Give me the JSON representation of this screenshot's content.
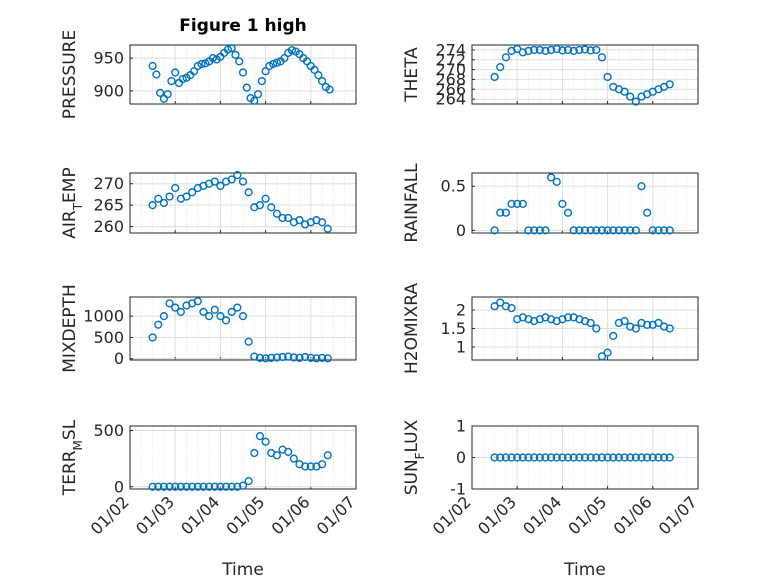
{
  "figure": {
    "title": "Figure 1 high",
    "xlabel": "Time",
    "xticks": [
      "01/02",
      "01/03",
      "01/04",
      "01/05",
      "01/06",
      "01/07"
    ]
  },
  "colors": {
    "marker": "#0072BD",
    "axis": "#262626",
    "grid": "#dedede"
  },
  "chart_data": [
    {
      "type": "scatter",
      "ylabel": "PRESSURE",
      "title": "Figure 1 high",
      "xlim": [
        "01/02",
        "01/07"
      ],
      "ylim": [
        880,
        970
      ],
      "yticks": [
        900,
        950
      ],
      "x": [
        "01/02 12:00",
        "01/02 14:00",
        "01/02 16:00",
        "01/02 18:00",
        "01/02 20:00",
        "01/02 22:00",
        "01/03 00:00",
        "01/03 02:00",
        "01/03 04:00",
        "01/03 06:00",
        "01/03 08:00",
        "01/03 10:00",
        "01/03 12:00",
        "01/03 14:00",
        "01/03 16:00",
        "01/03 18:00",
        "01/03 20:00",
        "01/03 22:00",
        "01/04 00:00",
        "01/04 02:00",
        "01/04 04:00",
        "01/04 06:00",
        "01/04 08:00",
        "01/04 10:00",
        "01/04 12:00",
        "01/04 14:00",
        "01/04 16:00",
        "01/04 18:00",
        "01/04 20:00",
        "01/04 22:00",
        "01/05 00:00",
        "01/05 02:00",
        "01/05 04:00",
        "01/05 06:00",
        "01/05 08:00",
        "01/05 10:00",
        "01/05 12:00",
        "01/05 14:00",
        "01/05 16:00",
        "01/05 18:00",
        "01/05 20:00",
        "01/05 22:00",
        "01/06 00:00",
        "01/06 02:00",
        "01/06 04:00",
        "01/06 06:00",
        "01/06 08:00",
        "01/06 10:00"
      ],
      "y": [
        938,
        925,
        897,
        888,
        895,
        915,
        928,
        912,
        918,
        920,
        924,
        930,
        938,
        941,
        942,
        945,
        950,
        948,
        952,
        958,
        963,
        965,
        955,
        945,
        928,
        905,
        889,
        885,
        895,
        915,
        930,
        938,
        941,
        943,
        945,
        950,
        958,
        962,
        960,
        956,
        950,
        945,
        938,
        932,
        924,
        915,
        906,
        902
      ]
    },
    {
      "type": "scatter",
      "ylabel": "THETA",
      "xlim": [
        "01/02",
        "01/07"
      ],
      "ylim": [
        263,
        275
      ],
      "yticks": [
        264,
        266,
        268,
        270,
        272,
        274
      ],
      "x": [
        "01/02 12:00",
        "01/02 15:00",
        "01/02 18:00",
        "01/02 21:00",
        "01/03 00:00",
        "01/03 03:00",
        "01/03 06:00",
        "01/03 09:00",
        "01/03 12:00",
        "01/03 15:00",
        "01/03 18:00",
        "01/03 21:00",
        "01/04 00:00",
        "01/04 03:00",
        "01/04 06:00",
        "01/04 09:00",
        "01/04 12:00",
        "01/04 15:00",
        "01/04 18:00",
        "01/04 21:00",
        "01/05 00:00",
        "01/05 03:00",
        "01/05 06:00",
        "01/05 09:00",
        "01/05 12:00",
        "01/05 15:00",
        "01/05 18:00",
        "01/05 21:00",
        "01/06 00:00",
        "01/06 03:00",
        "01/06 06:00",
        "01/06 09:00"
      ],
      "y": [
        268.5,
        270.5,
        272.5,
        273.8,
        274.2,
        273.5,
        273.8,
        274.0,
        274.0,
        273.8,
        274.0,
        274.2,
        273.9,
        274.0,
        273.8,
        274.0,
        274.1,
        273.9,
        274.0,
        272.5,
        268.5,
        266.5,
        266.0,
        265.5,
        264.5,
        263.5,
        264.5,
        265.0,
        265.5,
        266.0,
        266.5,
        267.0
      ]
    },
    {
      "type": "scatter",
      "ylabel": "AIR_TEMP",
      "xlim": [
        "01/02",
        "01/07"
      ],
      "ylim": [
        258.5,
        272.5
      ],
      "yticks": [
        260,
        265,
        270
      ],
      "x": [
        "01/02 12:00",
        "01/02 15:00",
        "01/02 18:00",
        "01/02 21:00",
        "01/03 00:00",
        "01/03 03:00",
        "01/03 06:00",
        "01/03 09:00",
        "01/03 12:00",
        "01/03 15:00",
        "01/03 18:00",
        "01/03 21:00",
        "01/04 00:00",
        "01/04 03:00",
        "01/04 06:00",
        "01/04 09:00",
        "01/04 12:00",
        "01/04 15:00",
        "01/04 18:00",
        "01/04 21:00",
        "01/05 00:00",
        "01/05 03:00",
        "01/05 06:00",
        "01/05 09:00",
        "01/05 12:00",
        "01/05 15:00",
        "01/05 18:00",
        "01/05 21:00",
        "01/06 00:00",
        "01/06 03:00",
        "01/06 06:00",
        "01/06 09:00"
      ],
      "y": [
        265,
        266.5,
        265.5,
        267,
        269,
        266.5,
        267,
        268,
        269,
        269.5,
        270,
        270.5,
        269.5,
        270.5,
        271,
        272,
        270.5,
        268,
        264.5,
        265,
        266.5,
        264.5,
        263,
        262,
        262,
        261,
        261.5,
        260.5,
        261,
        261.5,
        261,
        259.5
      ]
    },
    {
      "type": "scatter",
      "ylabel": "RAINFALL",
      "xlim": [
        "01/02",
        "01/07"
      ],
      "ylim": [
        -0.03,
        0.65
      ],
      "yticks": [
        0,
        0.5
      ],
      "x": [
        "01/02 12:00",
        "01/02 15:00",
        "01/02 18:00",
        "01/02 21:00",
        "01/03 00:00",
        "01/03 03:00",
        "01/03 06:00",
        "01/03 09:00",
        "01/03 12:00",
        "01/03 15:00",
        "01/03 18:00",
        "01/03 21:00",
        "01/04 00:00",
        "01/04 03:00",
        "01/04 06:00",
        "01/04 09:00",
        "01/04 12:00",
        "01/04 15:00",
        "01/04 18:00",
        "01/04 21:00",
        "01/05 00:00",
        "01/05 03:00",
        "01/05 06:00",
        "01/05 09:00",
        "01/05 12:00",
        "01/05 15:00",
        "01/05 18:00",
        "01/05 21:00",
        "01/06 00:00",
        "01/06 03:00",
        "01/06 06:00",
        "01/06 09:00"
      ],
      "y": [
        0,
        0.2,
        0.2,
        0.3,
        0.3,
        0.3,
        0,
        0,
        0,
        0,
        0.6,
        0.55,
        0.3,
        0.2,
        0,
        0,
        0,
        0,
        0,
        0,
        0,
        0,
        0,
        0,
        0,
        0,
        0.5,
        0.2,
        0,
        0,
        0,
        0
      ]
    },
    {
      "type": "scatter",
      "ylabel": "MIXDEPTH",
      "xlim": [
        "01/02",
        "01/07"
      ],
      "ylim": [
        -30,
        1450
      ],
      "yticks": [
        0,
        500,
        1000
      ],
      "x": [
        "01/02 12:00",
        "01/02 15:00",
        "01/02 18:00",
        "01/02 21:00",
        "01/03 00:00",
        "01/03 03:00",
        "01/03 06:00",
        "01/03 09:00",
        "01/03 12:00",
        "01/03 15:00",
        "01/03 18:00",
        "01/03 21:00",
        "01/04 00:00",
        "01/04 03:00",
        "01/04 06:00",
        "01/04 09:00",
        "01/04 12:00",
        "01/04 15:00",
        "01/04 18:00",
        "01/04 21:00",
        "01/05 00:00",
        "01/05 03:00",
        "01/05 06:00",
        "01/05 09:00",
        "01/05 12:00",
        "01/05 15:00",
        "01/05 18:00",
        "01/05 21:00",
        "01/06 00:00",
        "01/06 03:00",
        "01/06 06:00",
        "01/06 09:00"
      ],
      "y": [
        500,
        800,
        1000,
        1300,
        1200,
        1100,
        1250,
        1300,
        1350,
        1100,
        1000,
        1150,
        1000,
        900,
        1100,
        1200,
        1000,
        400,
        50,
        20,
        10,
        20,
        30,
        40,
        50,
        30,
        20,
        40,
        20,
        10,
        20,
        10
      ]
    },
    {
      "type": "scatter",
      "ylabel": "H2OMIXRA",
      "xlim": [
        "01/02",
        "01/07"
      ],
      "ylim": [
        0.65,
        2.35
      ],
      "yticks": [
        1,
        1.5,
        2
      ],
      "x": [
        "01/02 12:00",
        "01/02 15:00",
        "01/02 18:00",
        "01/02 21:00",
        "01/03 00:00",
        "01/03 03:00",
        "01/03 06:00",
        "01/03 09:00",
        "01/03 12:00",
        "01/03 15:00",
        "01/03 18:00",
        "01/03 21:00",
        "01/04 00:00",
        "01/04 03:00",
        "01/04 06:00",
        "01/04 09:00",
        "01/04 12:00",
        "01/04 15:00",
        "01/04 18:00",
        "01/04 21:00",
        "01/05 00:00",
        "01/05 03:00",
        "01/05 06:00",
        "01/05 09:00",
        "01/05 12:00",
        "01/05 15:00",
        "01/05 18:00",
        "01/05 21:00",
        "01/06 00:00",
        "01/06 03:00",
        "01/06 06:00",
        "01/06 09:00"
      ],
      "y": [
        2.1,
        2.2,
        2.1,
        2.05,
        1.75,
        1.8,
        1.75,
        1.7,
        1.75,
        1.8,
        1.75,
        1.7,
        1.75,
        1.8,
        1.8,
        1.75,
        1.7,
        1.65,
        1.5,
        0.75,
        0.85,
        1.3,
        1.65,
        1.7,
        1.55,
        1.5,
        1.65,
        1.6,
        1.6,
        1.65,
        1.55,
        1.5
      ]
    },
    {
      "type": "scatter",
      "ylabel": "TERR_MSL",
      "xlim": [
        "01/02",
        "01/07"
      ],
      "ylim": [
        -20,
        540
      ],
      "yticks": [
        0,
        500
      ],
      "x": [
        "01/02 12:00",
        "01/02 15:00",
        "01/02 18:00",
        "01/02 21:00",
        "01/03 00:00",
        "01/03 03:00",
        "01/03 06:00",
        "01/03 09:00",
        "01/03 12:00",
        "01/03 15:00",
        "01/03 18:00",
        "01/03 21:00",
        "01/04 00:00",
        "01/04 03:00",
        "01/04 06:00",
        "01/04 09:00",
        "01/04 12:00",
        "01/04 15:00",
        "01/04 18:00",
        "01/04 21:00",
        "01/05 00:00",
        "01/05 03:00",
        "01/05 06:00",
        "01/05 09:00",
        "01/05 12:00",
        "01/05 15:00",
        "01/05 18:00",
        "01/05 21:00",
        "01/06 00:00",
        "01/06 03:00",
        "01/06 06:00",
        "01/06 09:00"
      ],
      "y": [
        0,
        0,
        0,
        0,
        0,
        0,
        0,
        0,
        0,
        0,
        0,
        0,
        0,
        0,
        0,
        0,
        10,
        50,
        300,
        450,
        400,
        300,
        280,
        330,
        310,
        250,
        200,
        180,
        180,
        180,
        200,
        280
      ]
    },
    {
      "type": "scatter",
      "ylabel": "SUN_FLUX",
      "xlim": [
        "01/02",
        "01/07"
      ],
      "ylim": [
        -1,
        1
      ],
      "yticks": [
        -1,
        0,
        1
      ],
      "x": [
        "01/02 12:00",
        "01/02 15:00",
        "01/02 18:00",
        "01/02 21:00",
        "01/03 00:00",
        "01/03 03:00",
        "01/03 06:00",
        "01/03 09:00",
        "01/03 12:00",
        "01/03 15:00",
        "01/03 18:00",
        "01/03 21:00",
        "01/04 00:00",
        "01/04 03:00",
        "01/04 06:00",
        "01/04 09:00",
        "01/04 12:00",
        "01/04 15:00",
        "01/04 18:00",
        "01/04 21:00",
        "01/05 00:00",
        "01/05 03:00",
        "01/05 06:00",
        "01/05 09:00",
        "01/05 12:00",
        "01/05 15:00",
        "01/05 18:00",
        "01/05 21:00",
        "01/06 00:00",
        "01/06 03:00",
        "01/06 06:00",
        "01/06 09:00"
      ],
      "y": [
        0,
        0,
        0,
        0,
        0,
        0,
        0,
        0,
        0,
        0,
        0,
        0,
        0,
        0,
        0,
        0,
        0,
        0,
        0,
        0,
        0,
        0,
        0,
        0,
        0,
        0,
        0,
        0,
        0,
        0,
        0,
        0
      ]
    }
  ]
}
